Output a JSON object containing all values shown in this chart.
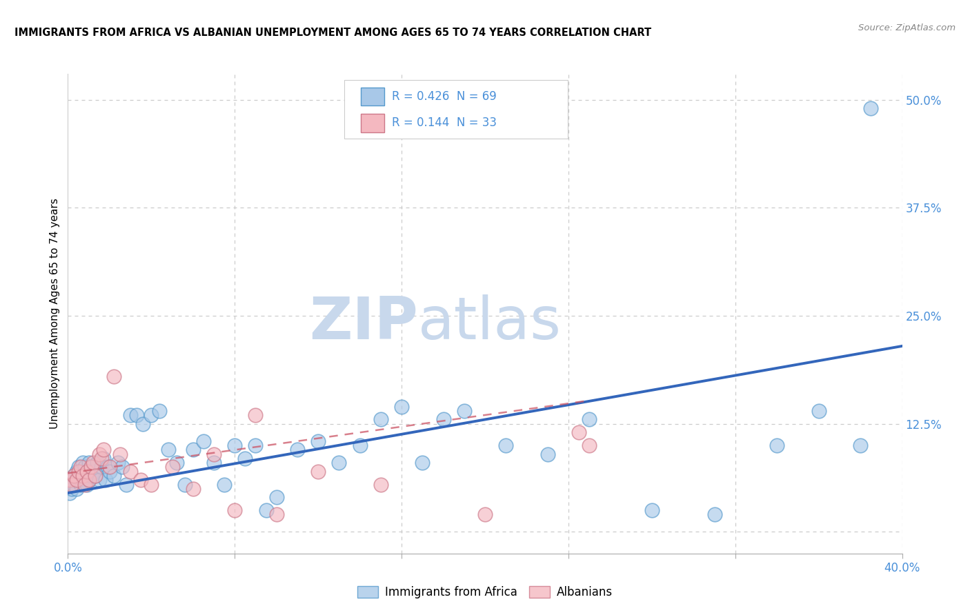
{
  "title": "IMMIGRANTS FROM AFRICA VS ALBANIAN UNEMPLOYMENT AMONG AGES 65 TO 74 YEARS CORRELATION CHART",
  "source": "Source: ZipAtlas.com",
  "ylabel": "Unemployment Among Ages 65 to 74 years",
  "xlim": [
    0.0,
    0.4
  ],
  "ylim": [
    -0.025,
    0.53
  ],
  "xtick_positions": [
    0.0,
    0.08,
    0.16,
    0.24,
    0.32,
    0.4
  ],
  "xtick_labels": [
    "0.0%",
    "",
    "",
    "",
    "",
    "40.0%"
  ],
  "yticks_right": [
    0.0,
    0.125,
    0.25,
    0.375,
    0.5
  ],
  "ytick_labels_right": [
    "",
    "12.5%",
    "25.0%",
    "37.5%",
    "50.0%"
  ],
  "legend1_r": "0.426",
  "legend1_n": "69",
  "legend2_r": "0.144",
  "legend2_n": "33",
  "blue_fill": "#a8c8e8",
  "blue_edge": "#5599cc",
  "pink_fill": "#f4b8c0",
  "pink_edge": "#cc7788",
  "blue_line_color": "#3366bb",
  "pink_line_color": "#cc5566",
  "watermark_zip_color": "#c8d8ec",
  "watermark_atlas_color": "#c8d8ec",
  "axis_label_color": "#4a90d9",
  "grid_color": "#cccccc",
  "blue_scatter_x": [
    0.001,
    0.002,
    0.002,
    0.003,
    0.003,
    0.004,
    0.004,
    0.005,
    0.005,
    0.006,
    0.006,
    0.007,
    0.007,
    0.008,
    0.008,
    0.009,
    0.009,
    0.01,
    0.01,
    0.011,
    0.011,
    0.012,
    0.013,
    0.014,
    0.015,
    0.016,
    0.017,
    0.018,
    0.019,
    0.02,
    0.022,
    0.024,
    0.026,
    0.028,
    0.03,
    0.033,
    0.036,
    0.04,
    0.044,
    0.048,
    0.052,
    0.056,
    0.06,
    0.065,
    0.07,
    0.075,
    0.08,
    0.085,
    0.09,
    0.095,
    0.1,
    0.11,
    0.12,
    0.13,
    0.14,
    0.15,
    0.16,
    0.17,
    0.18,
    0.19,
    0.21,
    0.23,
    0.25,
    0.28,
    0.31,
    0.34,
    0.36,
    0.38,
    0.385
  ],
  "blue_scatter_y": [
    0.045,
    0.05,
    0.06,
    0.055,
    0.065,
    0.05,
    0.07,
    0.06,
    0.075,
    0.055,
    0.07,
    0.065,
    0.08,
    0.06,
    0.075,
    0.055,
    0.07,
    0.06,
    0.08,
    0.065,
    0.075,
    0.07,
    0.065,
    0.08,
    0.06,
    0.075,
    0.085,
    0.06,
    0.075,
    0.07,
    0.065,
    0.08,
    0.075,
    0.055,
    0.135,
    0.135,
    0.125,
    0.135,
    0.14,
    0.095,
    0.08,
    0.055,
    0.095,
    0.105,
    0.08,
    0.055,
    0.1,
    0.085,
    0.1,
    0.025,
    0.04,
    0.095,
    0.105,
    0.08,
    0.1,
    0.13,
    0.145,
    0.08,
    0.13,
    0.14,
    0.1,
    0.09,
    0.13,
    0.025,
    0.02,
    0.1,
    0.14,
    0.1,
    0.49
  ],
  "pink_scatter_x": [
    0.001,
    0.002,
    0.003,
    0.004,
    0.005,
    0.006,
    0.007,
    0.008,
    0.009,
    0.01,
    0.011,
    0.012,
    0.013,
    0.015,
    0.016,
    0.017,
    0.02,
    0.022,
    0.025,
    0.03,
    0.035,
    0.04,
    0.05,
    0.06,
    0.07,
    0.08,
    0.09,
    0.1,
    0.12,
    0.15,
    0.2,
    0.245,
    0.25
  ],
  "pink_scatter_y": [
    0.06,
    0.055,
    0.065,
    0.06,
    0.07,
    0.075,
    0.065,
    0.055,
    0.07,
    0.06,
    0.075,
    0.08,
    0.065,
    0.09,
    0.085,
    0.095,
    0.075,
    0.18,
    0.09,
    0.07,
    0.06,
    0.055,
    0.075,
    0.05,
    0.09,
    0.025,
    0.135,
    0.02,
    0.07,
    0.055,
    0.02,
    0.115,
    0.1
  ],
  "blue_trend_x": [
    0.0,
    0.4
  ],
  "blue_trend_y": [
    0.045,
    0.215
  ],
  "pink_trend_x": [
    0.0,
    0.25
  ],
  "pink_trend_y": [
    0.068,
    0.152
  ]
}
